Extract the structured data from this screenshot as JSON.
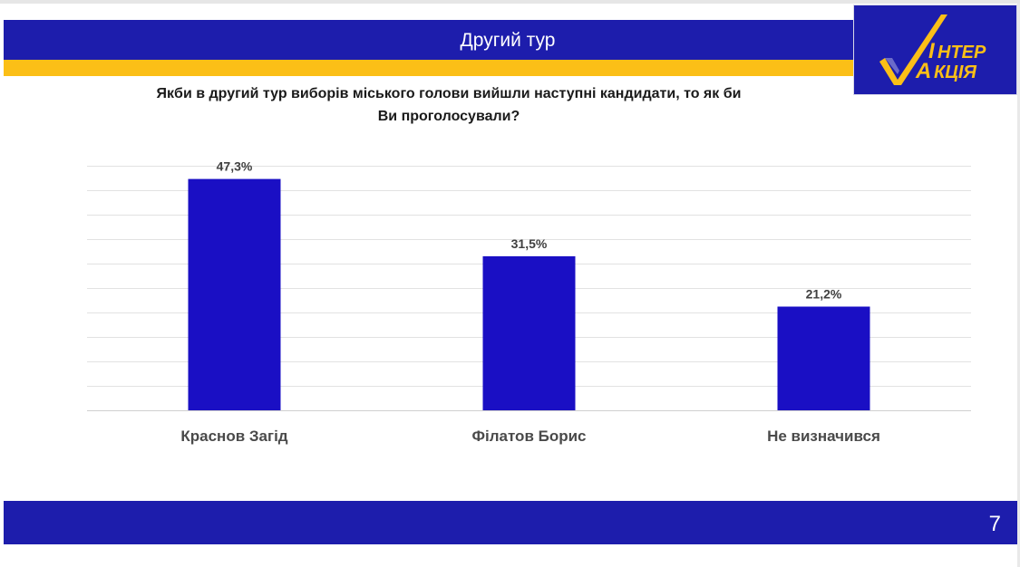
{
  "header": {
    "title": "Другий тур"
  },
  "logo": {
    "line1": "НТЕР",
    "line2": "КЦІЯ",
    "check_color": "#fbbf17",
    "text_color": "#fbbf17"
  },
  "colors": {
    "brand_blue": "#1d1dac",
    "accent_yellow": "#fbbf17",
    "bar": "#1a0fc4"
  },
  "question": {
    "line1": "Якби в другий тур виборів міського голови вийшли наступні кандидати, то як би",
    "line2": "Ви проголосували?"
  },
  "chart_data": {
    "type": "bar",
    "title": "Якби в другий тур виборів міського голови вийшли наступні кандидати, то як би Ви проголосували?",
    "categories": [
      "Краснов Загід",
      "Філатов Борис",
      "Не визначився"
    ],
    "values": [
      47.3,
      31.5,
      21.2
    ],
    "value_labels": [
      "47,3%",
      "31,5%",
      "21,2%"
    ],
    "xlabel": "",
    "ylabel": "",
    "ylim": [
      0,
      50
    ],
    "grid": true,
    "gridline_count": 10,
    "legend": "none",
    "bar_color": "#1a0fc4"
  },
  "footer": {
    "page_number": "7"
  }
}
